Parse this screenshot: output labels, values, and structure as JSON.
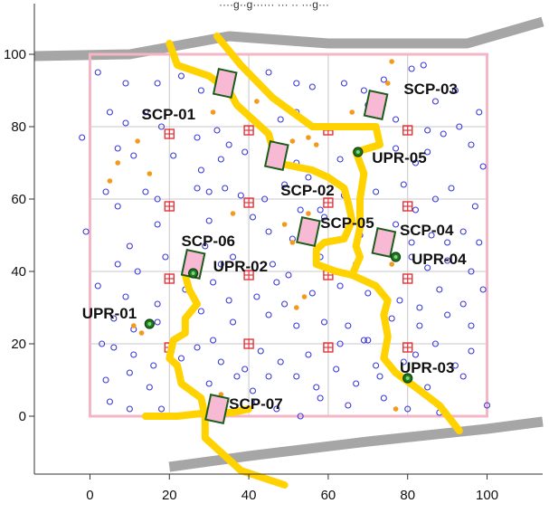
{
  "chart_data": {
    "type": "scatter",
    "title": "",
    "top_text_fragment": "····g··g······ ··· ·· ···g···",
    "xlim": [
      -14,
      114
    ],
    "ylim": [
      -16,
      114
    ],
    "x_ticks": [
      0,
      20,
      40,
      60,
      80,
      100
    ],
    "y_ticks": [
      0,
      20,
      40,
      60,
      80,
      100
    ],
    "x_tick_labels": [
      "0",
      "20",
      "40",
      "60",
      "80",
      "100"
    ],
    "y_tick_labels": [
      "0",
      "20",
      "40",
      "60",
      "80",
      "100"
    ],
    "grid": true,
    "grid_lines": [
      20,
      40,
      60,
      80
    ],
    "plot_region": [
      [
        0,
        0
      ],
      [
        100,
        100
      ]
    ],
    "colors": {
      "boundary": "#f4b6c7",
      "road": "#a6a6a6",
      "stream": "#ffd200",
      "grid": "#c8c8c8",
      "blue_point": "#3a3ad8",
      "orange_point": "#f39a1d",
      "red_marker": "#e5323a",
      "scp_fill": "#f7b9d3",
      "scp_border": "#1a5c1a",
      "upr_fill": "#1f7a1f"
    },
    "roads": [
      [
        [
          -14,
          99.5
        ],
        [
          10,
          100
        ],
        [
          35,
          105
        ],
        [
          60,
          103
        ],
        [
          95,
          103
        ],
        [
          114,
          109
        ]
      ],
      [
        [
          20,
          -14
        ],
        [
          40,
          -11
        ],
        [
          70,
          -7
        ],
        [
          100,
          -3.5
        ],
        [
          114,
          -1.5
        ]
      ]
    ],
    "streams": [
      [
        [
          20,
          103
        ],
        [
          22,
          97
        ],
        [
          30,
          94
        ],
        [
          35,
          90
        ],
        [
          37,
          86
        ],
        [
          41,
          82
        ],
        [
          45,
          78
        ],
        [
          47,
          70
        ],
        [
          56,
          68
        ],
        [
          60,
          66
        ],
        [
          64,
          63
        ],
        [
          65,
          59
        ],
        [
          66,
          54
        ],
        [
          64,
          49
        ],
        [
          59,
          48
        ],
        [
          57,
          46
        ],
        [
          57,
          42
        ],
        [
          62,
          40
        ],
        [
          66,
          39
        ],
        [
          72,
          36
        ],
        [
          75,
          32
        ],
        [
          74,
          28
        ],
        [
          75,
          22
        ],
        [
          74,
          16
        ],
        [
          77,
          12
        ],
        [
          82,
          8
        ],
        [
          88,
          3
        ],
        [
          93,
          -4
        ]
      ],
      [
        [
          32,
          105
        ],
        [
          38,
          97
        ],
        [
          46,
          88
        ],
        [
          56,
          80
        ],
        [
          60,
          80
        ],
        [
          72,
          80
        ],
        [
          73,
          75
        ],
        [
          67,
          73
        ],
        [
          69,
          67
        ],
        [
          68,
          60
        ],
        [
          68,
          52
        ],
        [
          67,
          47
        ],
        [
          68,
          44
        ],
        [
          66,
          39
        ]
      ],
      [
        [
          24,
          39
        ],
        [
          25,
          35
        ],
        [
          27,
          31
        ],
        [
          24,
          27
        ],
        [
          24,
          23
        ],
        [
          21,
          21
        ],
        [
          20,
          16
        ],
        [
          22,
          14
        ],
        [
          23,
          9
        ],
        [
          28,
          5
        ],
        [
          29,
          0
        ],
        [
          29,
          -6
        ],
        [
          38,
          -15
        ],
        [
          49,
          -19
        ]
      ],
      [
        [
          14,
          0
        ],
        [
          22,
          0
        ],
        [
          30,
          1
        ],
        [
          36,
          1
        ],
        [
          40,
          2
        ]
      ]
    ],
    "scp_sites": [
      {
        "label": "SCP-01",
        "center": [
          34,
          92
        ],
        "label_pos": [
          13,
          82
        ]
      },
      {
        "label": "SCP-02",
        "center": [
          47,
          72
        ],
        "label_pos": [
          48,
          61
        ]
      },
      {
        "label": "SCP-03",
        "center": [
          72,
          86
        ],
        "label_pos": [
          79,
          89
        ]
      },
      {
        "label": "SCP-04",
        "center": [
          74,
          48
        ],
        "label_pos": [
          78,
          50
        ]
      },
      {
        "label": "SCP-05",
        "center": [
          55,
          51
        ],
        "label_pos": [
          58,
          52
        ]
      },
      {
        "label": "SCP-06",
        "center": [
          26,
          42
        ],
        "label_pos": [
          23,
          47
        ]
      },
      {
        "label": "SCP-07",
        "center": [
          32,
          2
        ],
        "label_pos": [
          35,
          2
        ]
      }
    ],
    "upr_sites": [
      {
        "label": "UPR-01",
        "x": 15,
        "y": 25.5,
        "label_pos": [
          -2,
          27
        ]
      },
      {
        "label": "UPR-02",
        "x": 26,
        "y": 39.5,
        "label_pos": [
          31,
          40
        ]
      },
      {
        "label": "UPR-03",
        "x": 80,
        "y": 10.5,
        "label_pos": [
          78,
          12
        ]
      },
      {
        "label": "UPR-04",
        "x": 77,
        "y": 44,
        "label_pos": [
          81,
          42
        ]
      },
      {
        "label": "UPR-05",
        "x": 67.5,
        "y": 73,
        "label_pos": [
          71,
          70
        ]
      }
    ],
    "red_markers": [
      [
        20,
        78
      ],
      [
        40,
        79
      ],
      [
        60,
        79
      ],
      [
        80,
        79
      ],
      [
        20,
        58
      ],
      [
        40,
        59
      ],
      [
        60,
        59
      ],
      [
        80,
        58
      ],
      [
        20,
        38
      ],
      [
        40,
        39
      ],
      [
        60,
        39
      ],
      [
        80,
        38
      ],
      [
        20,
        19
      ],
      [
        40,
        20
      ],
      [
        60,
        19
      ],
      [
        80,
        19
      ]
    ],
    "orange_points": [
      [
        34,
        91
      ],
      [
        42,
        87
      ],
      [
        31,
        84
      ],
      [
        7,
        70
      ],
      [
        12,
        76
      ],
      [
        5,
        65
      ],
      [
        15,
        67
      ],
      [
        51,
        76
      ],
      [
        55,
        77
      ],
      [
        57,
        75
      ],
      [
        66,
        84
      ],
      [
        74,
        86
      ],
      [
        75,
        92
      ],
      [
        76,
        98
      ],
      [
        55,
        56
      ],
      [
        49,
        53
      ],
      [
        51,
        48
      ],
      [
        36,
        56
      ],
      [
        11,
        25
      ],
      [
        13,
        23
      ],
      [
        52,
        30
      ],
      [
        33,
        6
      ],
      [
        76,
        42
      ],
      [
        54,
        33
      ],
      [
        77,
        2
      ]
    ],
    "blue_points": [
      [
        2,
        95
      ],
      [
        9,
        92
      ],
      [
        17,
        92
      ],
      [
        23,
        94
      ],
      [
        28,
        90
      ],
      [
        45,
        95
      ],
      [
        52,
        92
      ],
      [
        56,
        91
      ],
      [
        64,
        92
      ],
      [
        69,
        90
      ],
      [
        70,
        86
      ],
      [
        74,
        93
      ],
      [
        81,
        96
      ],
      [
        84,
        97
      ],
      [
        87,
        87
      ],
      [
        92,
        90
      ],
      [
        98,
        84
      ],
      [
        5,
        84
      ],
      [
        9,
        81
      ],
      [
        14,
        84
      ],
      [
        18,
        80
      ],
      [
        27,
        77
      ],
      [
        32,
        79
      ],
      [
        48,
        82
      ],
      [
        52,
        84
      ],
      [
        56,
        80
      ],
      [
        64,
        80
      ],
      [
        77,
        82
      ],
      [
        85,
        79
      ],
      [
        89,
        78
      ],
      [
        93,
        80
      ],
      [
        -2,
        77
      ],
      [
        7,
        74
      ],
      [
        11,
        72
      ],
      [
        21,
        72
      ],
      [
        28,
        68
      ],
      [
        33,
        71
      ],
      [
        35,
        75
      ],
      [
        39,
        73
      ],
      [
        52,
        70
      ],
      [
        55,
        66
      ],
      [
        63,
        71
      ],
      [
        77,
        74
      ],
      [
        82,
        70
      ],
      [
        85,
        73
      ],
      [
        96,
        75
      ],
      [
        99,
        69
      ],
      [
        4,
        62
      ],
      [
        7,
        58
      ],
      [
        14,
        62
      ],
      [
        17,
        60
      ],
      [
        27,
        63
      ],
      [
        30,
        62
      ],
      [
        34,
        63
      ],
      [
        38,
        61
      ],
      [
        44,
        60
      ],
      [
        49,
        64
      ],
      [
        53,
        57
      ],
      [
        58,
        57
      ],
      [
        64,
        61
      ],
      [
        72,
        62
      ],
      [
        79,
        64
      ],
      [
        82,
        57
      ],
      [
        87,
        60
      ],
      [
        91,
        63
      ],
      [
        97,
        58
      ],
      [
        -1,
        51
      ],
      [
        10,
        47
      ],
      [
        17,
        53
      ],
      [
        30,
        54
      ],
      [
        41,
        55
      ],
      [
        45,
        51
      ],
      [
        51,
        49
      ],
      [
        59,
        55
      ],
      [
        68,
        50
      ],
      [
        77,
        53
      ],
      [
        81,
        48
      ],
      [
        86,
        50
      ],
      [
        90,
        48
      ],
      [
        94,
        51
      ],
      [
        98,
        48
      ],
      [
        7,
        42
      ],
      [
        12,
        40
      ],
      [
        19,
        44
      ],
      [
        29,
        47
      ],
      [
        33,
        42
      ],
      [
        36,
        44
      ],
      [
        46,
        42
      ],
      [
        50,
        39
      ],
      [
        58,
        44
      ],
      [
        67,
        42
      ],
      [
        81,
        44
      ],
      [
        85,
        41
      ],
      [
        90,
        43
      ],
      [
        96,
        40
      ],
      [
        2,
        36
      ],
      [
        9,
        33
      ],
      [
        17,
        31
      ],
      [
        24,
        35
      ],
      [
        31,
        37
      ],
      [
        35,
        32
      ],
      [
        42,
        33
      ],
      [
        47,
        37
      ],
      [
        49,
        31
      ],
      [
        56,
        34
      ],
      [
        63,
        36
      ],
      [
        70,
        34
      ],
      [
        78,
        32
      ],
      [
        83,
        30
      ],
      [
        88,
        35
      ],
      [
        94,
        31
      ],
      [
        99,
        35
      ],
      [
        6,
        27
      ],
      [
        11,
        24
      ],
      [
        17,
        26
      ],
      [
        28,
        29
      ],
      [
        36,
        26
      ],
      [
        45,
        28
      ],
      [
        52,
        25
      ],
      [
        59,
        26
      ],
      [
        65,
        25
      ],
      [
        69,
        21
      ],
      [
        76,
        27
      ],
      [
        83,
        25
      ],
      [
        90,
        28
      ],
      [
        96,
        25
      ],
      [
        3,
        20
      ],
      [
        6,
        19
      ],
      [
        11,
        17
      ],
      [
        16,
        14
      ],
      [
        27,
        19
      ],
      [
        31,
        21
      ],
      [
        33,
        15
      ],
      [
        39,
        13
      ],
      [
        43,
        18
      ],
      [
        48,
        15
      ],
      [
        55,
        17
      ],
      [
        63,
        20
      ],
      [
        70,
        21
      ],
      [
        72,
        14
      ],
      [
        82,
        17
      ],
      [
        87,
        20
      ],
      [
        92,
        14
      ],
      [
        96,
        18
      ],
      [
        4,
        10
      ],
      [
        10,
        12
      ],
      [
        15,
        8
      ],
      [
        30,
        9
      ],
      [
        37,
        11
      ],
      [
        41,
        7
      ],
      [
        45,
        11
      ],
      [
        52,
        11
      ],
      [
        57,
        8
      ],
      [
        62,
        13
      ],
      [
        67,
        9
      ],
      [
        73,
        11
      ],
      [
        79,
        15
      ],
      [
        85,
        8
      ],
      [
        94,
        11
      ],
      [
        5,
        4
      ],
      [
        10,
        2
      ],
      [
        18,
        2
      ],
      [
        42,
        4
      ],
      [
        47,
        2
      ],
      [
        53,
        0
      ],
      [
        58,
        5
      ],
      [
        65,
        3
      ],
      [
        74,
        5
      ],
      [
        80,
        2
      ],
      [
        88,
        1
      ],
      [
        100,
        3
      ],
      [
        23,
        16
      ]
    ]
  }
}
